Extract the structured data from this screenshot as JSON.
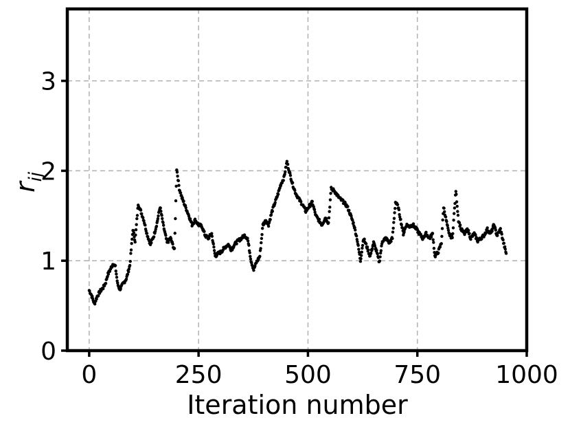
{
  "chart_data": {
    "type": "scatter",
    "xlabel": "Iteration number",
    "ylabel": "r",
    "ylabel_subscript": "ij",
    "xlim": [
      -50,
      1000
    ],
    "ylim": [
      0,
      3.8
    ],
    "xticks": [
      0,
      250,
      500,
      750,
      1000
    ],
    "yticks": [
      0,
      1,
      2,
      3
    ],
    "xtick_labels": [
      "0",
      "250",
      "500",
      "750",
      "1000"
    ],
    "ytick_labels": [
      "0",
      "1",
      "2",
      "3"
    ],
    "grid": true,
    "marker_color": "#000000",
    "trend_knots": [
      [
        0,
        0.67
      ],
      [
        5,
        0.62
      ],
      [
        12,
        0.52
      ],
      [
        18,
        0.6
      ],
      [
        25,
        0.66
      ],
      [
        32,
        0.7
      ],
      [
        38,
        0.76
      ],
      [
        42,
        0.84
      ],
      [
        48,
        0.9
      ],
      [
        55,
        0.97
      ],
      [
        60,
        0.93
      ],
      [
        65,
        0.74
      ],
      [
        70,
        0.68
      ],
      [
        77,
        0.74
      ],
      [
        85,
        0.8
      ],
      [
        93,
        0.95
      ],
      [
        100,
        1.35
      ],
      [
        105,
        1.22
      ],
      [
        112,
        1.63
      ],
      [
        118,
        1.55
      ],
      [
        125,
        1.45
      ],
      [
        132,
        1.3
      ],
      [
        140,
        1.18
      ],
      [
        148,
        1.28
      ],
      [
        155,
        1.42
      ],
      [
        162,
        1.6
      ],
      [
        170,
        1.38
      ],
      [
        178,
        1.2
      ],
      [
        186,
        1.25
      ],
      [
        195,
        1.12
      ],
      [
        200,
        2.02
      ],
      [
        206,
        1.8
      ],
      [
        212,
        1.7
      ],
      [
        220,
        1.6
      ],
      [
        228,
        1.5
      ],
      [
        235,
        1.4
      ],
      [
        242,
        1.45
      ],
      [
        250,
        1.4
      ],
      [
        258,
        1.38
      ],
      [
        265,
        1.28
      ],
      [
        272,
        1.25
      ],
      [
        280,
        1.3
      ],
      [
        288,
        1.05
      ],
      [
        295,
        1.08
      ],
      [
        302,
        1.1
      ],
      [
        310,
        1.15
      ],
      [
        318,
        1.18
      ],
      [
        325,
        1.12
      ],
      [
        332,
        1.18
      ],
      [
        340,
        1.22
      ],
      [
        348,
        1.25
      ],
      [
        355,
        1.28
      ],
      [
        362,
        1.25
      ],
      [
        370,
        1.0
      ],
      [
        376,
        0.9
      ],
      [
        382,
        0.98
      ],
      [
        390,
        1.05
      ],
      [
        397,
        1.4
      ],
      [
        404,
        1.45
      ],
      [
        410,
        1.4
      ],
      [
        418,
        1.55
      ],
      [
        425,
        1.65
      ],
      [
        432,
        1.75
      ],
      [
        438,
        1.85
      ],
      [
        445,
        1.92
      ],
      [
        452,
        2.1
      ],
      [
        458,
        1.98
      ],
      [
        465,
        1.85
      ],
      [
        472,
        1.75
      ],
      [
        480,
        1.68
      ],
      [
        488,
        1.62
      ],
      [
        495,
        1.55
      ],
      [
        502,
        1.6
      ],
      [
        510,
        1.65
      ],
      [
        518,
        1.5
      ],
      [
        525,
        1.45
      ],
      [
        532,
        1.4
      ],
      [
        540,
        1.48
      ],
      [
        547,
        1.42
      ],
      [
        553,
        1.8
      ],
      [
        560,
        1.78
      ],
      [
        568,
        1.72
      ],
      [
        575,
        1.68
      ],
      [
        582,
        1.65
      ],
      [
        590,
        1.6
      ],
      [
        598,
        1.5
      ],
      [
        605,
        1.4
      ],
      [
        612,
        1.25
      ],
      [
        620,
        1.0
      ],
      [
        627,
        1.25
      ],
      [
        635,
        1.15
      ],
      [
        642,
        1.05
      ],
      [
        650,
        1.2
      ],
      [
        657,
        1.1
      ],
      [
        663,
        0.98
      ],
      [
        670,
        1.22
      ],
      [
        678,
        1.25
      ],
      [
        686,
        1.2
      ],
      [
        693,
        1.25
      ],
      [
        700,
        1.65
      ],
      [
        706,
        1.6
      ],
      [
        712,
        1.45
      ],
      [
        718,
        1.3
      ],
      [
        725,
        1.4
      ],
      [
        732,
        1.38
      ],
      [
        740,
        1.4
      ],
      [
        748,
        1.35
      ],
      [
        755,
        1.3
      ],
      [
        762,
        1.25
      ],
      [
        770,
        1.3
      ],
      [
        778,
        1.25
      ],
      [
        785,
        1.3
      ],
      [
        790,
        1.05
      ],
      [
        798,
        1.1
      ],
      [
        805,
        1.2
      ],
      [
        810,
        1.6
      ],
      [
        816,
        1.45
      ],
      [
        822,
        1.3
      ],
      [
        830,
        1.25
      ],
      [
        838,
        1.78
      ],
      [
        844,
        1.45
      ],
      [
        850,
        1.35
      ],
      [
        858,
        1.3
      ],
      [
        865,
        1.35
      ],
      [
        872,
        1.25
      ],
      [
        880,
        1.3
      ],
      [
        888,
        1.22
      ],
      [
        895,
        1.25
      ],
      [
        902,
        1.28
      ],
      [
        910,
        1.35
      ],
      [
        918,
        1.3
      ],
      [
        925,
        1.4
      ],
      [
        932,
        1.28
      ],
      [
        940,
        1.35
      ],
      [
        947,
        1.2
      ],
      [
        953,
        1.08
      ]
    ]
  }
}
